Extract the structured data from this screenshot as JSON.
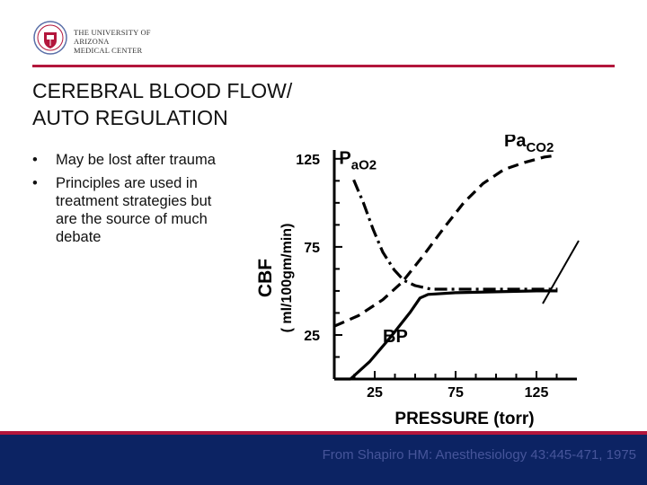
{
  "header": {
    "university_line1": "THE UNIVERSITY OF ARIZONA",
    "university_line2": "MEDICAL CENTER",
    "accent_color": "#b3163c",
    "logo_icon": "university-seal-icon"
  },
  "slide": {
    "title_line1": "CEREBRAL BLOOD FLOW/",
    "title_line2": "AUTO REGULATION",
    "bullets": [
      "May be lost after trauma",
      "Principles are used in treatment strategies but are the source of much debate"
    ]
  },
  "footer": {
    "citation": "From Shapiro HM: Anesthesiology 43:445-471, 1975",
    "background_color": "#0c2363"
  },
  "chart_data": {
    "type": "line",
    "xlabel": "PRESSURE (torr)",
    "ylabel_line1": "CBF",
    "ylabel_line2": "( ml/100gm/min)",
    "x_ticks": [
      25,
      75,
      125
    ],
    "y_ticks": [
      25,
      75,
      125
    ],
    "xlim": [
      0,
      150
    ],
    "ylim": [
      0,
      130
    ],
    "grid": false,
    "series": [
      {
        "name": "PaCO2",
        "style": "dashed",
        "points": [
          [
            0,
            30
          ],
          [
            15,
            36
          ],
          [
            30,
            45
          ],
          [
            42,
            55
          ],
          [
            55,
            70
          ],
          [
            68,
            86
          ],
          [
            80,
            100
          ],
          [
            92,
            111
          ],
          [
            105,
            119
          ],
          [
            118,
            123
          ],
          [
            130,
            126
          ],
          [
            138,
            127
          ]
        ]
      },
      {
        "name": "PaO2",
        "style": "dashdot",
        "points": [
          [
            12,
            113
          ],
          [
            18,
            100
          ],
          [
            24,
            85
          ],
          [
            30,
            72
          ],
          [
            37,
            62
          ],
          [
            43,
            56
          ],
          [
            50,
            53
          ],
          [
            60,
            51
          ],
          [
            80,
            51
          ],
          [
            100,
            51
          ],
          [
            120,
            51
          ],
          [
            138,
            51
          ]
        ]
      },
      {
        "name": "BP",
        "style": "solid",
        "points": [
          [
            0,
            0
          ],
          [
            10,
            0
          ],
          [
            22,
            10
          ],
          [
            35,
            24
          ],
          [
            47,
            38
          ],
          [
            53,
            46
          ],
          [
            58,
            48
          ],
          [
            75,
            49
          ],
          [
            100,
            49.5
          ],
          [
            125,
            50
          ],
          [
            138,
            50
          ]
        ]
      }
    ],
    "annotations": [
      {
        "text": "Pa",
        "sub": "CO2",
        "x": 105,
        "y": 132
      },
      {
        "text": "P",
        "sub": "aO2",
        "x": 3,
        "y": 122
      },
      {
        "text": "BP",
        "x": 30,
        "y": 21
      }
    ]
  }
}
